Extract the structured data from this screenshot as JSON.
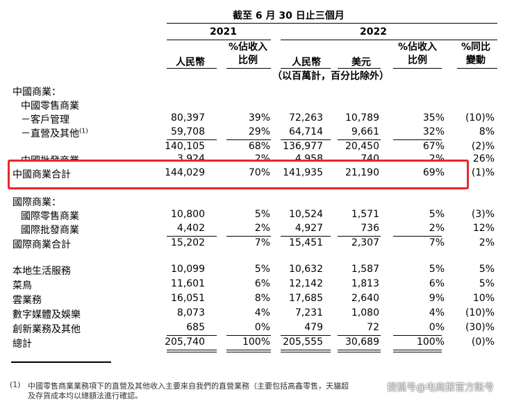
{
  "header": {
    "period_title": "截至 6 月 30 日止三個月",
    "year_2021": "2021",
    "year_2022": "2022",
    "col_rmb_2021": "人民幣",
    "col_pct_rev_2021": "%佔收入\n比例",
    "col_rmb_2022": "人民幣",
    "col_usd_2022": "美元",
    "col_pct_rev_2022": "%佔收入\n比例",
    "col_yoy": "%同比\n變動",
    "unit_note": "（以百萬計，百分比除外）"
  },
  "rows": [
    {
      "label": "中國商業：",
      "v": [
        "",
        "",
        "",
        "",
        "",
        ""
      ]
    },
    {
      "label": "中國零售商業",
      "v": [
        "",
        "",
        "",
        "",
        "",
        ""
      ]
    },
    {
      "label": "－客戶管理",
      "v": [
        "80,397",
        "39%",
        "72,263",
        "10,789",
        "35%",
        "(10)%"
      ]
    },
    {
      "label": "－直營及其他",
      "sup": "(1)",
      "v": [
        "59,708",
        "29%",
        "64,714",
        "9,661",
        "32%",
        "8%"
      ]
    },
    {
      "label": "",
      "v": [
        "140,105",
        "68%",
        "136,977",
        "20,450",
        "67%",
        "(2)%"
      ]
    },
    {
      "label": "中國批發商業",
      "v": [
        "3,924",
        "2%",
        "4,958",
        "740",
        "2%",
        "26%"
      ]
    },
    {
      "label": "中國商業合計",
      "v": [
        "144,029",
        "70%",
        "141,935",
        "21,190",
        "69%",
        "(1)%"
      ]
    },
    {
      "label": "國際商業：",
      "v": [
        "",
        "",
        "",
        "",
        "",
        ""
      ]
    },
    {
      "label": "國際零售商業",
      "v": [
        "10,800",
        "5%",
        "10,524",
        "1,571",
        "5%",
        "(3)%"
      ]
    },
    {
      "label": "國際批發商業",
      "v": [
        "4,402",
        "2%",
        "4,927",
        "736",
        "2%",
        "12%"
      ]
    },
    {
      "label": "國際商業合計",
      "v": [
        "15,202",
        "7%",
        "15,451",
        "2,307",
        "7%",
        "2%"
      ]
    },
    {
      "label": "本地生活服務",
      "v": [
        "10,099",
        "5%",
        "10,632",
        "1,587",
        "5%",
        "5%"
      ]
    },
    {
      "label": "菜鳥",
      "v": [
        "11,601",
        "6%",
        "12,142",
        "1,813",
        "6%",
        "5%"
      ]
    },
    {
      "label": "雲業務",
      "v": [
        "16,051",
        "8%",
        "17,685",
        "2,640",
        "9%",
        "10%"
      ]
    },
    {
      "label": "數字媒體及娛樂",
      "v": [
        "8,073",
        "4%",
        "7,231",
        "1,080",
        "4%",
        "(10)%"
      ]
    },
    {
      "label": "創新業務及其他",
      "v": [
        "685",
        "0%",
        "479",
        "72",
        "0%",
        "(30)%"
      ]
    },
    {
      "label": "總計",
      "v": [
        "205,740",
        "100%",
        "205,555",
        "30,689",
        "100%",
        "(0)%"
      ]
    }
  ],
  "footnote": {
    "marker": "(1)",
    "line1": "中國零售商業業務項下的直營及其他收入主要來自我們的直營業務（主要包括高鑫零售，天貓超",
    "line2": "及存貨成本均以總額法進行確認。"
  },
  "watermark": "搜狐号@电商报官方账号",
  "highlight_color": "#e8262b"
}
